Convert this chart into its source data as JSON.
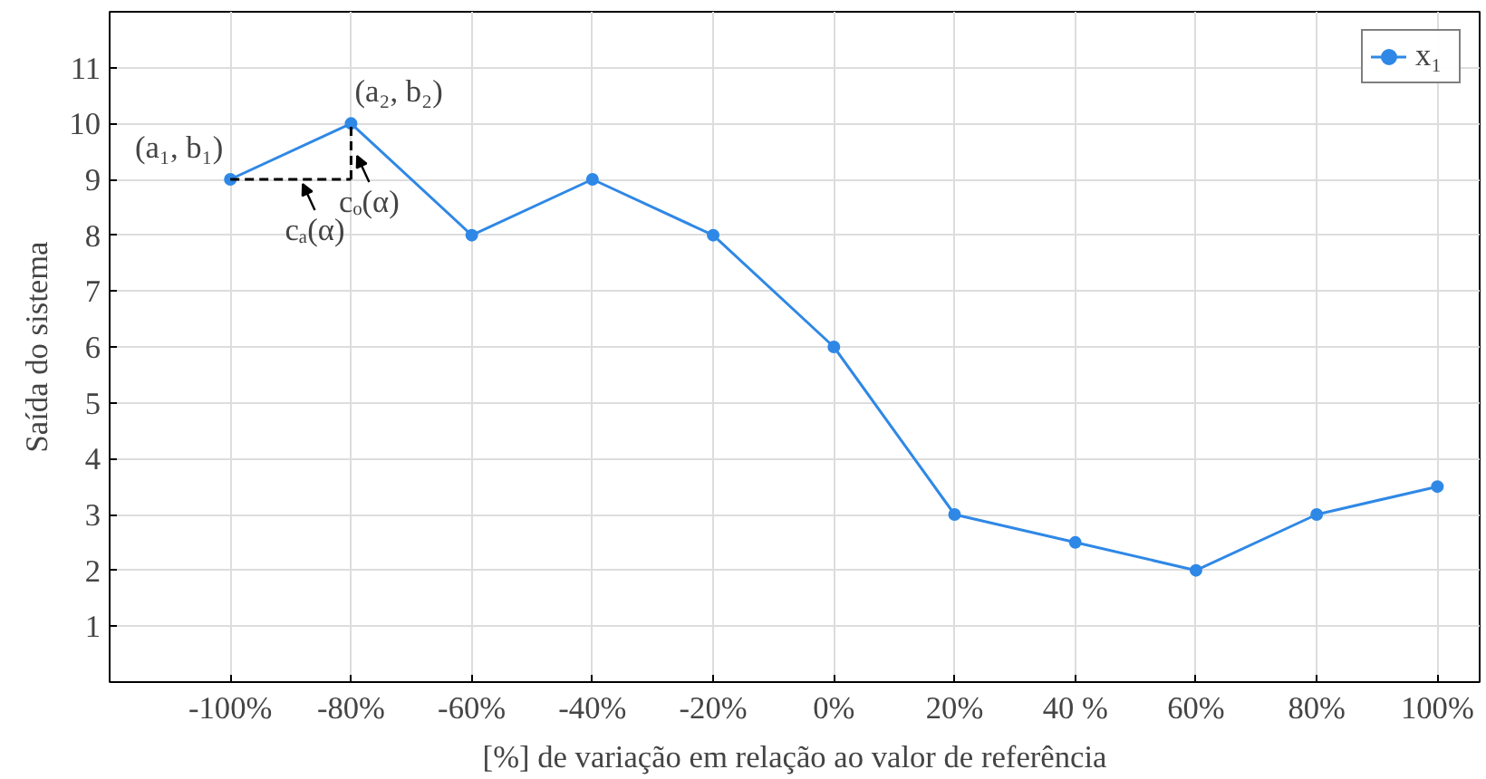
{
  "chart_data": {
    "type": "line",
    "xlabel": "[%] de variação em relação ao valor de referência",
    "ylabel": "Saída do sistema",
    "xlim": [
      -120,
      107
    ],
    "ylim": [
      0,
      12
    ],
    "xticks": [
      {
        "value": -100,
        "label": "-100%"
      },
      {
        "value": -80,
        "label": "-80%"
      },
      {
        "value": -60,
        "label": "-60%"
      },
      {
        "value": -40,
        "label": "-40%"
      },
      {
        "value": -20,
        "label": "-20%"
      },
      {
        "value": 0,
        "label": "0%"
      },
      {
        "value": 20,
        "label": "20%"
      },
      {
        "value": 40,
        "label": "40 %"
      },
      {
        "value": 60,
        "label": "60%"
      },
      {
        "value": 80,
        "label": "80%"
      },
      {
        "value": 100,
        "label": "100%"
      }
    ],
    "yticks": [
      1,
      2,
      3,
      4,
      5,
      6,
      7,
      8,
      9,
      10,
      11
    ],
    "series": [
      {
        "name": "x₁",
        "color": "#2f88e6",
        "marker": "circle",
        "x": [
          -100,
          -80,
          -60,
          -40,
          -20,
          0,
          20,
          40,
          60,
          80,
          100
        ],
        "values": [
          9,
          10,
          8,
          9,
          8,
          6,
          3,
          2.5,
          2,
          3,
          3.5
        ]
      },
      {
        "color": "#000000",
        "marker": "none",
        "line_style": "dashed",
        "x": [
          -100,
          -80
        ],
        "values": [
          9,
          9
        ]
      },
      {
        "color": "#000000",
        "marker": "none",
        "line_style": "dashed",
        "x": [
          -80,
          -80
        ],
        "values": [
          9,
          10
        ]
      }
    ],
    "annotations": [
      {
        "text": "(a₁, b₁)",
        "x": -100,
        "y": 9
      },
      {
        "text": "(a₂, b₂)",
        "x": -80,
        "y": 10
      },
      {
        "text": "cₐ(α)",
        "x": -88,
        "y": 9
      },
      {
        "text": "cₒ(α)",
        "x": -79,
        "y": 9.5
      }
    ],
    "grid": true,
    "legend": "top right"
  }
}
